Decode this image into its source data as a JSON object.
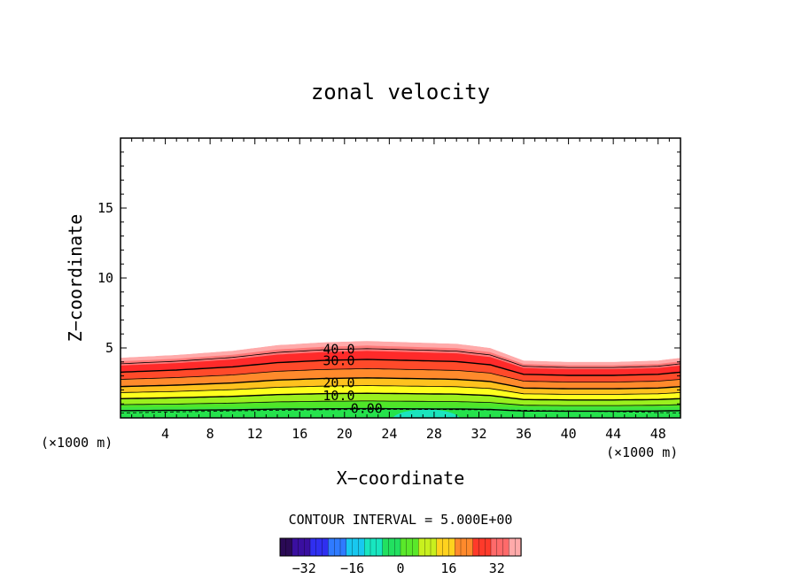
{
  "chart_data": {
    "type": "contour",
    "title": "zonal velocity",
    "xlabel": "X−coordinate",
    "ylabel": "Z−coordinate",
    "x_unit_left": "(×1000 m)",
    "x_unit_right": "(×1000 m)",
    "x_ticks": [
      4,
      8,
      12,
      16,
      20,
      24,
      28,
      32,
      36,
      40,
      44,
      48
    ],
    "y_ticks": [
      5,
      10,
      15
    ],
    "xlim": [
      0,
      50
    ],
    "ylim": [
      0,
      20
    ],
    "contour_levels": [
      0,
      5,
      10,
      15,
      20,
      25,
      30,
      35,
      40
    ],
    "contour_labels": [
      "40.0",
      "30.0",
      "20.0",
      "10.0",
      "0.00"
    ],
    "contour_interval_text": "CONTOUR INTERVAL = 5.000E+00",
    "colorbar": {
      "ticks": [
        -32,
        -16,
        0,
        16,
        32
      ],
      "range": [
        -40,
        40
      ]
    },
    "top_profile": [
      [
        0,
        4.3
      ],
      [
        5,
        4.5
      ],
      [
        10,
        4.8
      ],
      [
        14,
        5.2
      ],
      [
        18,
        5.4
      ],
      [
        22,
        5.5
      ],
      [
        26,
        5.4
      ],
      [
        30,
        5.3
      ],
      [
        33,
        5.0
      ],
      [
        36,
        4.1
      ],
      [
        40,
        4.0
      ],
      [
        44,
        4.0
      ],
      [
        48,
        4.1
      ],
      [
        50,
        4.3
      ]
    ],
    "negative_region": {
      "x": [
        24.3,
        30.3
      ],
      "z_max": 0.8
    }
  },
  "colors": {
    "neg_strong": "#3a0fa0",
    "neg_mid": "#2f63ff",
    "cyan": "#18e6e6",
    "green": "#27e33a",
    "yellow": "#ffff1e",
    "orange": "#ff8a2c",
    "red": "#ff2a2a",
    "pink": "#ffaaaa"
  }
}
